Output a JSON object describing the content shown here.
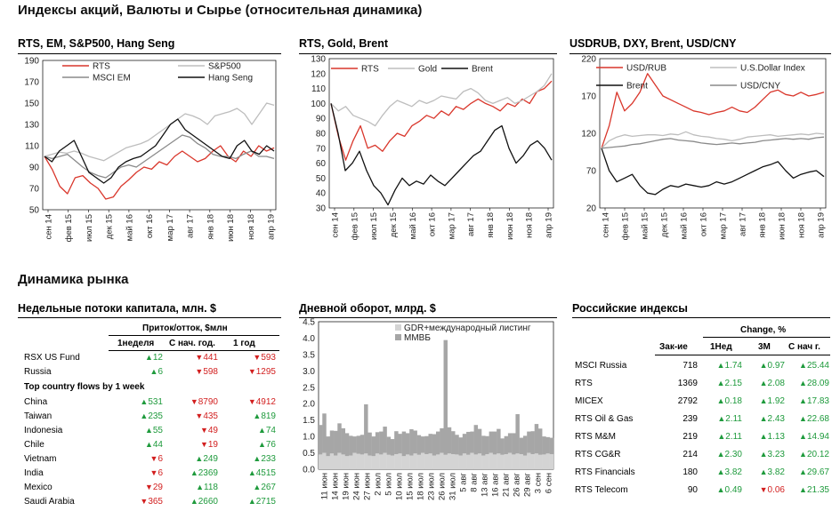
{
  "title": "Индексы акций, Валюты и  Сырье (относительная динамика)",
  "section2_title": "Динамика рынка",
  "colors": {
    "red": "#d9362b",
    "gray": "#bdbdbd",
    "darkgray": "#8a8a8a",
    "black": "#111111",
    "up": "#1e9a3c",
    "down": "#d21f1f",
    "bar_dark": "#a6a6a6",
    "bar_light": "#d4d4d4"
  },
  "chart_data": [
    {
      "type": "line",
      "title": "RTS, EM, S&P500, Hang Seng",
      "y_ticks": [
        "190",
        "170",
        "150",
        "130",
        "110",
        "90",
        "70",
        "50"
      ],
      "ylim": [
        50,
        190
      ],
      "x_ticks": [
        "сен 14",
        "фев 15",
        "июл 15",
        "дек 15",
        "май 16",
        "окт 16",
        "мар 17",
        "авг 17",
        "янв 18",
        "июн 18",
        "ноя 18",
        "апр 19"
      ],
      "legend": [
        "RTS",
        "S&P500",
        "MSCI EM",
        "Hang Seng"
      ],
      "series": [
        {
          "name": "RTS",
          "color": "red",
          "values": [
            100,
            88,
            72,
            65,
            80,
            82,
            75,
            70,
            60,
            62,
            72,
            78,
            85,
            90,
            88,
            95,
            92,
            100,
            105,
            100,
            95,
            98,
            105,
            110,
            100,
            95,
            105,
            100,
            110,
            105,
            108
          ]
        },
        {
          "name": "S&P500",
          "color": "gray",
          "values": [
            100,
            102,
            104,
            103,
            105,
            103,
            100,
            98,
            96,
            100,
            104,
            108,
            110,
            112,
            115,
            120,
            125,
            130,
            135,
            140,
            138,
            135,
            130,
            138,
            140,
            142,
            145,
            140,
            130,
            140,
            150,
            148
          ]
        },
        {
          "name": "MSCI EM",
          "color": "darkgray",
          "values": [
            100,
            98,
            100,
            102,
            96,
            90,
            85,
            82,
            80,
            85,
            90,
            92,
            90,
            95,
            100,
            105,
            110,
            115,
            120,
            118,
            112,
            108,
            102,
            100,
            100,
            98,
            102,
            105,
            100,
            100,
            98
          ]
        },
        {
          "name": "Hang Seng",
          "color": "black",
          "values": [
            100,
            95,
            105,
            110,
            115,
            100,
            85,
            80,
            75,
            80,
            90,
            95,
            98,
            100,
            105,
            110,
            120,
            130,
            135,
            125,
            120,
            115,
            110,
            105,
            100,
            98,
            110,
            115,
            105,
            102,
            110,
            105
          ]
        }
      ]
    },
    {
      "type": "line",
      "title": "RTS, Gold, Brent",
      "y_ticks": [
        "130",
        "120",
        "110",
        "100",
        "90",
        "80",
        "70",
        "60",
        "50",
        "40",
        "30"
      ],
      "ylim": [
        30,
        130
      ],
      "x_ticks": [
        "сен 14",
        "фев 15",
        "июл 15",
        "дек 15",
        "май 16",
        "окт 16",
        "мар 17",
        "авг 17",
        "янв 18",
        "июн 18",
        "ноя 18",
        "апр 19"
      ],
      "legend": [
        "RTS",
        "Gold",
        "Brent"
      ],
      "series": [
        {
          "name": "RTS",
          "color": "red",
          "values": [
            100,
            78,
            62,
            75,
            85,
            70,
            72,
            68,
            75,
            80,
            78,
            85,
            88,
            92,
            90,
            95,
            92,
            98,
            96,
            100,
            103,
            100,
            98,
            95,
            100,
            98,
            103,
            100,
            108,
            110,
            115
          ]
        },
        {
          "name": "Gold",
          "color": "gray",
          "values": [
            100,
            95,
            98,
            92,
            90,
            88,
            85,
            92,
            98,
            102,
            100,
            98,
            102,
            100,
            102,
            105,
            104,
            103,
            108,
            110,
            107,
            102,
            100,
            102,
            104,
            100,
            102,
            105,
            108,
            112,
            120
          ]
        },
        {
          "name": "Brent",
          "color": "black",
          "values": [
            100,
            80,
            55,
            60,
            68,
            55,
            45,
            40,
            32,
            42,
            50,
            45,
            48,
            46,
            52,
            48,
            45,
            50,
            55,
            60,
            65,
            68,
            75,
            82,
            85,
            70,
            60,
            65,
            72,
            75,
            70,
            62
          ]
        }
      ]
    },
    {
      "type": "line",
      "title": "USDRUB, DXY, Brent, USD/CNY",
      "y_ticks": [
        "220",
        "170",
        "120",
        "70",
        "20"
      ],
      "ylim": [
        20,
        220
      ],
      "x_ticks": [
        "сен 14",
        "фев 15",
        "май 15",
        "дек 15",
        "май 16",
        "окт 16",
        "мар 17",
        "авг 17",
        "янв 18",
        "июн 18",
        "ноя 18",
        "апр 19"
      ],
      "legend": [
        "USD/RUB",
        "U.S.Dollar Index",
        "Brent",
        "USD/CNY"
      ],
      "series": [
        {
          "name": "USD/RUB",
          "color": "red",
          "values": [
            100,
            130,
            175,
            150,
            160,
            175,
            200,
            185,
            170,
            165,
            160,
            155,
            150,
            148,
            145,
            148,
            150,
            155,
            150,
            148,
            155,
            165,
            175,
            178,
            172,
            170,
            175,
            170,
            172,
            175
          ]
        },
        {
          "name": "U.S.Dollar Index",
          "color": "gray",
          "values": [
            100,
            110,
            115,
            118,
            116,
            117,
            118,
            118,
            117,
            119,
            118,
            122,
            118,
            116,
            115,
            113,
            112,
            110,
            112,
            115,
            116,
            117,
            118,
            116,
            117,
            118,
            119,
            118,
            120,
            119
          ]
        },
        {
          "name": "Brent",
          "color": "black",
          "values": [
            100,
            70,
            55,
            60,
            65,
            50,
            40,
            38,
            45,
            50,
            48,
            52,
            50,
            48,
            50,
            55,
            52,
            55,
            60,
            65,
            70,
            75,
            78,
            82,
            70,
            60,
            65,
            68,
            70,
            62
          ]
        },
        {
          "name": "USD/CNY",
          "color": "darkgray",
          "values": [
            100,
            101,
            102,
            103,
            105,
            106,
            108,
            110,
            112,
            113,
            111,
            110,
            109,
            107,
            106,
            105,
            106,
            107,
            106,
            107,
            108,
            110,
            111,
            112,
            113,
            112,
            113,
            112,
            114,
            115
          ]
        }
      ]
    },
    {
      "type": "bar",
      "title": "Дневной оборот, млрд. $",
      "y_ticks": [
        "4.5",
        "4.0",
        "3.5",
        "3.0",
        "2.5",
        "2.0",
        "1.5",
        "1.0",
        "0.5",
        "0.0"
      ],
      "ylim": [
        0,
        4.5
      ],
      "x_ticks": [
        "11 июн",
        "14 июн",
        "19 июн",
        "24 июн",
        "27 июн",
        "2 июл",
        "5 июл",
        "10 июл",
        "15 июл",
        "18 июл",
        "23 июл",
        "26 июл",
        "31 июл",
        "5 авг",
        "8 авг",
        "13 авг",
        "16 авг",
        "21 авг",
        "26 авг",
        "29 авг",
        "3 сен",
        "6 сен"
      ],
      "legend": [
        "GDR+международный листинг",
        "ММВБ"
      ],
      "series": [
        {
          "name": "GDR+международный листинг",
          "color": "bar_light",
          "values": [
            0.45,
            0.5,
            0.4,
            0.48,
            0.42,
            0.5,
            0.45,
            0.4,
            0.42,
            0.5,
            0.47,
            0.45,
            0.48,
            0.42,
            0.4,
            0.48,
            0.45,
            0.5,
            0.44,
            0.42,
            0.46,
            0.48,
            0.4,
            0.45,
            0.42,
            0.48,
            0.44,
            0.5,
            0.46,
            0.48,
            0.42,
            0.45,
            0.5,
            0.44,
            0.48,
            0.46,
            0.45,
            0.42,
            0.48,
            0.44,
            0.5,
            0.45,
            0.48,
            0.42,
            0.46,
            0.5,
            0.45,
            0.48,
            0.44,
            0.46,
            0.5,
            0.45,
            0.48,
            0.46,
            0.42,
            0.5,
            0.46,
            0.48,
            0.44,
            0.45,
            0.48,
            0.46
          ]
        },
        {
          "name": "ММВБ",
          "color": "bar_dark",
          "values": [
            0.9,
            1.2,
            0.6,
            0.7,
            0.75,
            0.9,
            0.8,
            0.7,
            0.6,
            0.5,
            0.55,
            0.6,
            1.5,
            0.7,
            0.6,
            0.65,
            0.7,
            0.8,
            0.55,
            0.5,
            0.7,
            0.6,
            0.75,
            0.65,
            0.8,
            0.7,
            0.6,
            0.5,
            0.55,
            0.6,
            0.65,
            0.7,
            0.75,
            3.5,
            0.8,
            0.7,
            0.6,
            0.55,
            0.6,
            0.7,
            0.65,
            0.9,
            0.75,
            0.6,
            0.55,
            0.65,
            0.7,
            0.75,
            0.5,
            0.55,
            0.6,
            0.65,
            1.2,
            0.5,
            0.6,
            0.65,
            0.7,
            0.9,
            0.8,
            0.55,
            0.5,
            0.5
          ]
        }
      ]
    }
  ],
  "flows": {
    "title": "Недельные потоки капитала, млн. $",
    "group_header": "Приток/отток, $млн",
    "headers": [
      "1неделя",
      "С нач. год.",
      "1 год"
    ],
    "top_rows": [
      {
        "name": "RSX US Fund",
        "v1": "12",
        "d1": "up",
        "v2": "441",
        "d2": "dn",
        "v3": "593",
        "d3": "dn"
      },
      {
        "name": "Russia",
        "v1": "6",
        "d1": "up",
        "v2": "598",
        "d2": "dn",
        "v3": "1295",
        "d3": "dn"
      }
    ],
    "sub_header": "Top country flows by 1 week",
    "rows": [
      {
        "name": "China",
        "v1": "531",
        "d1": "up",
        "v2": "8790",
        "d2": "dn",
        "v3": "4912",
        "d3": "dn"
      },
      {
        "name": "Taiwan",
        "v1": "235",
        "d1": "up",
        "v2": "435",
        "d2": "dn",
        "v3": "819",
        "d3": "up"
      },
      {
        "name": "Indonesia",
        "v1": "55",
        "d1": "up",
        "v2": "49",
        "d2": "dn",
        "v3": "74",
        "d3": "up"
      },
      {
        "name": "Chile",
        "v1": "44",
        "d1": "up",
        "v2": "19",
        "d2": "dn",
        "v3": "76",
        "d3": "up"
      },
      {
        "name": "Vietnam",
        "v1": "6",
        "d1": "dn",
        "v2": "249",
        "d2": "up",
        "v3": "233",
        "d3": "up"
      },
      {
        "name": "India",
        "v1": "6",
        "d1": "dn",
        "v2": "2369",
        "d2": "up",
        "v3": "4515",
        "d3": "up"
      },
      {
        "name": "Mexico",
        "v1": "29",
        "d1": "dn",
        "v2": "118",
        "d2": "up",
        "v3": "267",
        "d3": "up"
      },
      {
        "name": "Saudi Arabia",
        "v1": "365",
        "d1": "dn",
        "v2": "2660",
        "d2": "up",
        "v3": "2715",
        "d3": "up"
      }
    ]
  },
  "indices": {
    "title": "Российские индексы",
    "change_header": "Change, %",
    "headers": [
      "Зак-ие",
      "1Нед",
      "3М",
      "С нач г."
    ],
    "rows": [
      {
        "name": "MSCI Russia",
        "close": "718",
        "v1": "1.74",
        "d1": "up",
        "v2": "0.97",
        "d2": "up",
        "v3": "25.44",
        "d3": "up"
      },
      {
        "name": "RTS",
        "close": "1369",
        "v1": "2.15",
        "d1": "up",
        "v2": "2.08",
        "d2": "up",
        "v3": "28.09",
        "d3": "up"
      },
      {
        "name": "MICEX",
        "close": "2792",
        "v1": "0.18",
        "d1": "up",
        "v2": "1.92",
        "d2": "up",
        "v3": "17.83",
        "d3": "up"
      },
      {
        "name": "RTS Oil & Gas",
        "close": "239",
        "v1": "2.11",
        "d1": "up",
        "v2": "2.43",
        "d2": "up",
        "v3": "22.68",
        "d3": "up"
      },
      {
        "name": "RTS M&M",
        "close": "219",
        "v1": "2.11",
        "d1": "up",
        "v2": "1.13",
        "d2": "up",
        "v3": "14.94",
        "d3": "up"
      },
      {
        "name": "RTS CG&R",
        "close": "214",
        "v1": "2.30",
        "d1": "up",
        "v2": "3.23",
        "d2": "up",
        "v3": "20.12",
        "d3": "up"
      },
      {
        "name": "RTS Financials",
        "close": "180",
        "v1": "3.82",
        "d1": "up",
        "v2": "3.82",
        "d2": "up",
        "v3": "29.67",
        "d3": "up"
      },
      {
        "name": "RTS Telecom",
        "close": "90",
        "v1": "0.49",
        "d1": "up",
        "v2": "0.06",
        "d2": "dn",
        "v3": "21.35",
        "d3": "up"
      }
    ]
  }
}
